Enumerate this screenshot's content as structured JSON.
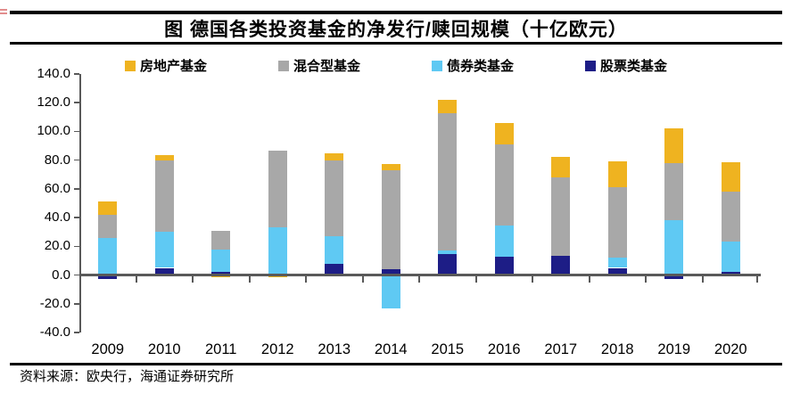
{
  "title": "图  德国各类投资基金的净发行/赎回规模（十亿欧元）",
  "source": "资料来源：欧央行，海通证券研究所",
  "colors": {
    "real_estate": "#EFB320",
    "mixed": "#A8A8A8",
    "bond": "#5FC9F3",
    "equity": "#1D1D86",
    "axis": "#595959",
    "rule": "#000000",
    "red_mark": "#CC3333"
  },
  "chart_data": {
    "type": "bar",
    "stacked": true,
    "title": "图  德国各类投资基金的净发行/赎回规模（十亿欧元）",
    "categories": [
      "2009",
      "2010",
      "2011",
      "2012",
      "2013",
      "2014",
      "2015",
      "2016",
      "2017",
      "2018",
      "2019",
      "2020"
    ],
    "series": [
      {
        "name": "房地产基金",
        "color": "#EFB320",
        "values": [
          9.5,
          4,
          -1.5,
          -1.5,
          5,
          4.5,
          9.5,
          15,
          14,
          18,
          24,
          20.5
        ]
      },
      {
        "name": "混合型基金",
        "color": "#A8A8A8",
        "values": [
          16.5,
          49.5,
          13.5,
          53.5,
          53,
          69,
          95.5,
          56.5,
          54.5,
          49,
          39.5,
          34.5
        ]
      },
      {
        "name": "债券类基金",
        "color": "#5FC9F3",
        "values": [
          25.5,
          25,
          15,
          33,
          19.5,
          -23.5,
          2.5,
          22,
          0,
          7,
          38.5,
          21
        ]
      },
      {
        "name": "股票类基金",
        "color": "#1D1D86",
        "values": [
          -2.5,
          5,
          2.5,
          0,
          7.5,
          4,
          14.5,
          12.5,
          13.5,
          5,
          -2.5,
          2.5
        ]
      }
    ],
    "stack_order_note": "stacked bottom-to-top: 股票类基金, 债券类基金, 混合型基金, 房地产基金 (reverse of legend order)",
    "ylim": [
      -40,
      140
    ],
    "ytick_step": 20,
    "ytick_labels": [
      "140.0",
      "120.0",
      "100.0",
      "80.0",
      "60.0",
      "40.0",
      "20.0",
      "0.0",
      "-20.0",
      "-40.0"
    ],
    "legend_position": "top",
    "grid": false
  }
}
